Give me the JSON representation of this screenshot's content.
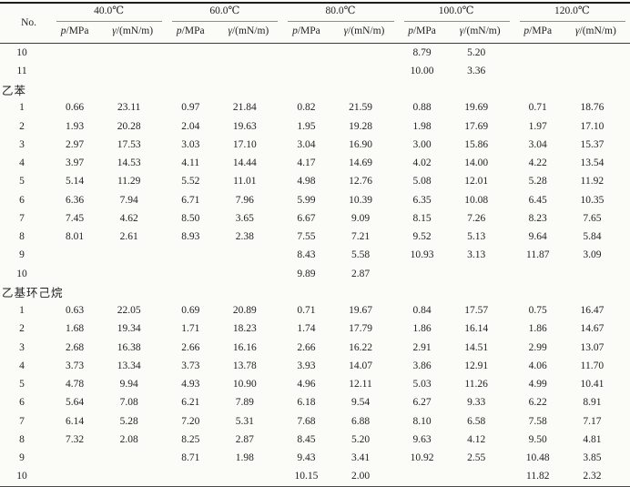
{
  "table": {
    "corner_label": "No.",
    "temperature_groups": [
      "40.0℃",
      "60.0℃",
      "80.0℃",
      "100.0℃",
      "120.0℃"
    ],
    "column_headers": {
      "pressure_symbol": "p",
      "pressure_unit": "/MPa",
      "tension_symbol": "γ",
      "tension_unit": "/(mN/m)"
    },
    "colors": {
      "background": "#fbfbf8",
      "text": "#222222",
      "rule_top": "#1c1c1c",
      "rule_mid": "#3c3c3c",
      "rule_spanner": "#8e8e8e"
    },
    "sections": [
      {
        "label": "",
        "rows": [
          [
            "10",
            "",
            "",
            "",
            "",
            "",
            "",
            "8.79",
            "5.20",
            "",
            ""
          ],
          [
            "11",
            "",
            "",
            "",
            "",
            "",
            "",
            "10.00",
            "3.36",
            "",
            ""
          ]
        ]
      },
      {
        "label": "乙苯",
        "rows": [
          [
            "1",
            "0.66",
            "23.11",
            "0.97",
            "21.84",
            "0.82",
            "21.59",
            "0.88",
            "19.69",
            "0.71",
            "18.76"
          ],
          [
            "2",
            "1.93",
            "20.28",
            "2.04",
            "19.63",
            "1.95",
            "19.28",
            "1.98",
            "17.69",
            "1.97",
            "17.10"
          ],
          [
            "3",
            "2.97",
            "17.53",
            "3.03",
            "17.10",
            "3.04",
            "16.90",
            "3.00",
            "15.86",
            "3.04",
            "15.37"
          ],
          [
            "4",
            "3.97",
            "14.53",
            "4.11",
            "14.44",
            "4.17",
            "14.69",
            "4.02",
            "14.00",
            "4.22",
            "13.54"
          ],
          [
            "5",
            "5.14",
            "11.29",
            "5.52",
            "11.01",
            "4.98",
            "12.76",
            "5.08",
            "12.01",
            "5.28",
            "11.92"
          ],
          [
            "6",
            "6.36",
            "7.94",
            "6.71",
            "7.96",
            "5.99",
            "10.39",
            "6.35",
            "10.08",
            "6.45",
            "10.35"
          ],
          [
            "7",
            "7.45",
            "4.62",
            "8.50",
            "3.65",
            "6.67",
            "9.09",
            "8.15",
            "7.26",
            "8.23",
            "7.65"
          ],
          [
            "8",
            "8.01",
            "2.61",
            "8.93",
            "2.38",
            "7.55",
            "7.21",
            "9.52",
            "5.13",
            "9.64",
            "5.84"
          ],
          [
            "9",
            "",
            "",
            "",
            "",
            "8.43",
            "5.58",
            "10.93",
            "3.13",
            "11.87",
            "3.09"
          ],
          [
            "10",
            "",
            "",
            "",
            "",
            "9.89",
            "2.87",
            "",
            "",
            "",
            ""
          ]
        ]
      },
      {
        "label": "乙基环己烷",
        "rows": [
          [
            "1",
            "0.63",
            "22.05",
            "0.69",
            "20.89",
            "0.71",
            "19.67",
            "0.84",
            "17.57",
            "0.75",
            "16.47"
          ],
          [
            "2",
            "1.68",
            "19.34",
            "1.71",
            "18.23",
            "1.74",
            "17.79",
            "1.86",
            "16.14",
            "1.86",
            "14.67"
          ],
          [
            "3",
            "2.68",
            "16.38",
            "2.66",
            "16.16",
            "2.66",
            "16.22",
            "2.91",
            "14.51",
            "2.99",
            "13.07"
          ],
          [
            "4",
            "3.73",
            "13.34",
            "3.73",
            "13.78",
            "3.93",
            "14.07",
            "3.86",
            "12.91",
            "4.06",
            "11.70"
          ],
          [
            "5",
            "4.78",
            "9.94",
            "4.93",
            "10.90",
            "4.96",
            "12.11",
            "5.03",
            "11.26",
            "4.99",
            "10.41"
          ],
          [
            "6",
            "5.64",
            "7.08",
            "6.21",
            "7.89",
            "6.18",
            "9.54",
            "6.27",
            "9.33",
            "6.22",
            "8.91"
          ],
          [
            "7",
            "6.14",
            "5.28",
            "7.20",
            "5.31",
            "7.68",
            "6.88",
            "8.10",
            "6.58",
            "7.58",
            "7.17"
          ],
          [
            "8",
            "7.32",
            "2.08",
            "8.25",
            "2.87",
            "8.45",
            "5.20",
            "9.63",
            "4.12",
            "9.50",
            "4.81"
          ],
          [
            "9",
            "",
            "",
            "8.71",
            "1.98",
            "9.43",
            "3.41",
            "10.92",
            "2.55",
            "10.48",
            "3.85"
          ],
          [
            "10",
            "",
            "",
            "",
            "",
            "10.15",
            "2.00",
            "",
            "",
            "11.82",
            "2.32"
          ]
        ]
      }
    ]
  }
}
